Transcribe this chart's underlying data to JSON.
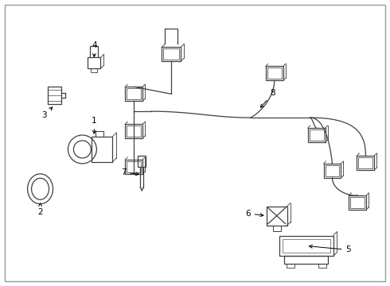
{
  "background_color": "#ffffff",
  "line_color": "#404040",
  "figsize": [
    4.9,
    3.6
  ],
  "dpi": 100,
  "border_color": "#999999",
  "lw": 0.9
}
